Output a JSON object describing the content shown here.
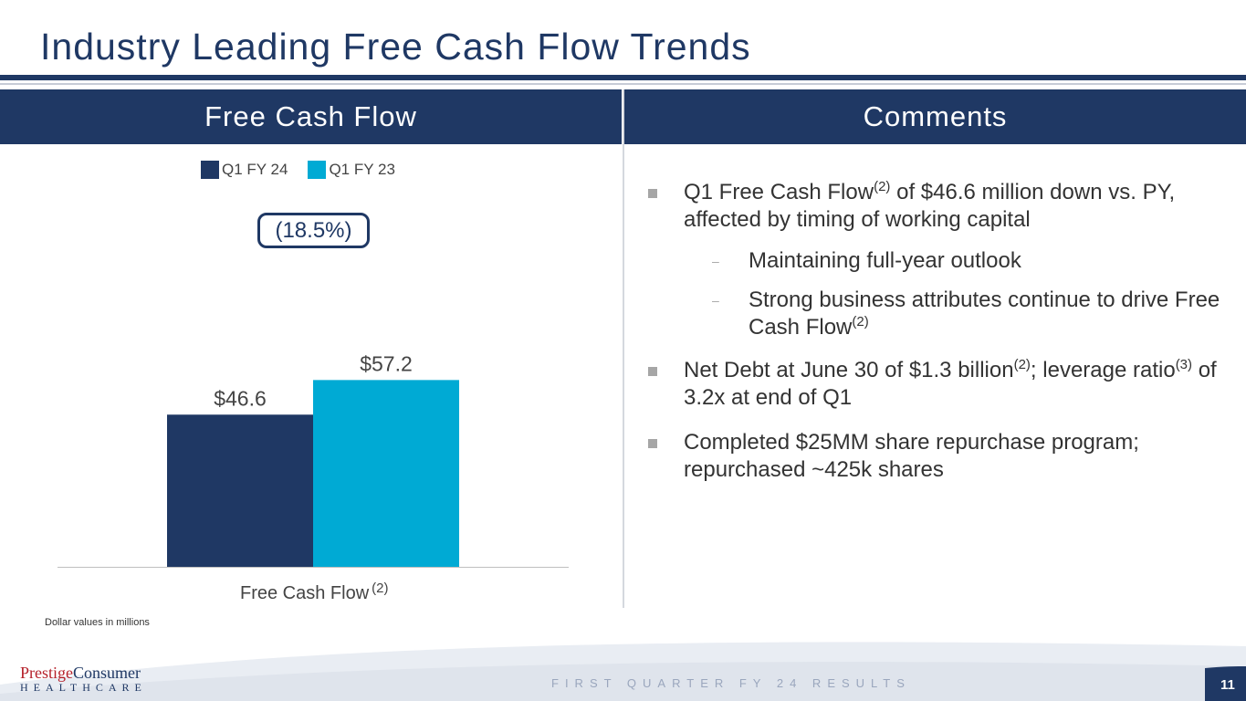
{
  "title": "Industry Leading Free Cash Flow Trends",
  "left_header": "Free Cash Flow",
  "right_header": "Comments",
  "pill_label": "(18.5%)",
  "footnote": "Dollar values in millions",
  "footer": {
    "logo_line1_a": "Prestige",
    "logo_line1_b": "Consumer",
    "logo_line2": "HEALTHCARE",
    "text": "FIRST QUARTER FY 24 RESULTS",
    "page_number": "11"
  },
  "colors": {
    "navy": "#1f3864",
    "cyan": "#00aad4"
  },
  "chart_data": {
    "type": "bar",
    "categories": [
      "Free Cash Flow"
    ],
    "category_superscript": "(2)",
    "series": [
      {
        "name": "Q1 FY 24",
        "values": [
          46.6
        ],
        "labels": [
          "$46.6"
        ],
        "color": "#1f3864"
      },
      {
        "name": "Q1 FY 23",
        "values": [
          57.2
        ],
        "labels": [
          "$57.2"
        ],
        "color": "#00aad4"
      }
    ],
    "ylim": [
      0,
      90
    ],
    "legend": "top-center",
    "grid": false
  },
  "comments": {
    "b1_main": "Q1 Free Cash Flow",
    "b1_sup": "(2)",
    "b1_rest": " of $46.6 million down vs. PY, affected by timing of working capital",
    "b1_sub1": "Maintaining full-year outlook",
    "b1_sub2_main": "Strong business attributes continue to drive Free Cash Flow",
    "b1_sub2_sup": "(2)",
    "dash": "–",
    "b2_main": "Net Debt at June 30 of $1.3 billion",
    "b2_sup1": "(2)",
    "b2_mid": "; leverage ratio",
    "b2_sup2": "(3)",
    "b2_rest": " of 3.2x at end of Q1",
    "b3": "Completed $25MM share repurchase program; repurchased ~425k shares"
  }
}
